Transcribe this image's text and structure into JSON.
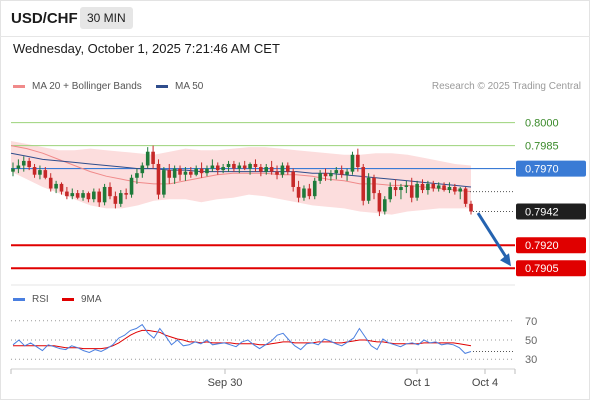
{
  "header": {
    "symbol": "USD/CHF",
    "timeframe": "30 MIN",
    "datetime": "Wednesday, October 1, 2025 7:21:46 AM CET"
  },
  "legend": {
    "ma20": "MA 20 + Bollinger Bands",
    "ma50": "MA 50",
    "credit": "Research © 2025 Trading Central",
    "rsi": "RSI",
    "rsi_ma": "9MA"
  },
  "colors": {
    "up": "#1e7a3a",
    "down": "#c62828",
    "ma20": "#f08a8a",
    "ma50": "#2f4d8c",
    "band_fill": "#fbd7d7",
    "support": "#e00000",
    "resistance": "#9bd27a",
    "pivot": "#3a7bd5",
    "arrow": "#2563b0",
    "rsi": "#4a7fe0",
    "rsi_ma": "#e00000"
  },
  "chart_data": [
    {
      "type": "candlestick",
      "ylim": [
        0.7896,
        0.8018
      ],
      "x_tick_labels": [
        "Sep 30",
        "Oct 1",
        "Oct 4"
      ],
      "levels": [
        {
          "label": "0.8000",
          "value": 0.8,
          "role": "resistance"
        },
        {
          "label": "0.7985",
          "value": 0.7985,
          "role": "resistance"
        },
        {
          "label": "0.7970",
          "value": 0.797,
          "role": "pivot"
        },
        {
          "label": "0.7920",
          "value": 0.792,
          "role": "support"
        },
        {
          "label": "0.7905",
          "value": 0.7905,
          "role": "support"
        }
      ],
      "last_price": {
        "label": "0.7942",
        "value": 0.7942
      },
      "candles": [
        [
          0.7968,
          0.7974,
          0.7965,
          0.797
        ],
        [
          0.797,
          0.7976,
          0.7967,
          0.7972
        ],
        [
          0.7972,
          0.7978,
          0.7968,
          0.7975
        ],
        [
          0.7975,
          0.7977,
          0.7969,
          0.7971
        ],
        [
          0.7971,
          0.7973,
          0.7964,
          0.7966
        ],
        [
          0.7966,
          0.7972,
          0.7963,
          0.7969
        ],
        [
          0.7969,
          0.7971,
          0.7963,
          0.7964
        ],
        [
          0.7964,
          0.7967,
          0.7955,
          0.7957
        ],
        [
          0.7957,
          0.7962,
          0.7954,
          0.796
        ],
        [
          0.796,
          0.7961,
          0.7953,
          0.7955
        ],
        [
          0.7955,
          0.7958,
          0.795,
          0.7952
        ],
        [
          0.7952,
          0.7957,
          0.795,
          0.7954
        ],
        [
          0.7954,
          0.7956,
          0.795,
          0.7951
        ],
        [
          0.7951,
          0.7956,
          0.7949,
          0.7954
        ],
        [
          0.7954,
          0.7955,
          0.7948,
          0.795
        ],
        [
          0.795,
          0.7957,
          0.7948,
          0.7955
        ],
        [
          0.7955,
          0.7957,
          0.7945,
          0.7948
        ],
        [
          0.7948,
          0.796,
          0.7946,
          0.7958
        ],
        [
          0.7958,
          0.7961,
          0.795,
          0.7952
        ],
        [
          0.7952,
          0.7955,
          0.7944,
          0.7947
        ],
        [
          0.7947,
          0.7956,
          0.7945,
          0.7954
        ],
        [
          0.7954,
          0.7957,
          0.795,
          0.7953
        ],
        [
          0.7953,
          0.7966,
          0.7951,
          0.7964
        ],
        [
          0.7964,
          0.797,
          0.796,
          0.7967
        ],
        [
          0.7967,
          0.7974,
          0.7964,
          0.7972
        ],
        [
          0.7972,
          0.7984,
          0.797,
          0.7981
        ],
        [
          0.7981,
          0.7985,
          0.797,
          0.7973
        ],
        [
          0.7973,
          0.7976,
          0.795,
          0.7953
        ],
        [
          0.7953,
          0.7971,
          0.7951,
          0.7969
        ],
        [
          0.7969,
          0.7973,
          0.796,
          0.7964
        ],
        [
          0.7964,
          0.7972,
          0.796,
          0.797
        ],
        [
          0.797,
          0.7972,
          0.7962,
          0.7966
        ],
        [
          0.7966,
          0.7971,
          0.7962,
          0.7968
        ],
        [
          0.7968,
          0.7971,
          0.7964,
          0.7966
        ],
        [
          0.7966,
          0.7972,
          0.7965,
          0.797
        ],
        [
          0.797,
          0.7974,
          0.7964,
          0.7967
        ],
        [
          0.7967,
          0.7972,
          0.7965,
          0.797
        ],
        [
          0.797,
          0.7976,
          0.7968,
          0.7972
        ],
        [
          0.7972,
          0.7974,
          0.7966,
          0.7969
        ],
        [
          0.7969,
          0.7973,
          0.7967,
          0.7971
        ],
        [
          0.7971,
          0.7975,
          0.7968,
          0.7973
        ],
        [
          0.7973,
          0.7975,
          0.7968,
          0.797
        ],
        [
          0.797,
          0.7974,
          0.7967,
          0.7972
        ],
        [
          0.7972,
          0.7975,
          0.7969,
          0.797
        ],
        [
          0.797,
          0.7974,
          0.7966,
          0.7973
        ],
        [
          0.7973,
          0.7976,
          0.7968,
          0.7971
        ],
        [
          0.7971,
          0.7973,
          0.7965,
          0.7968
        ],
        [
          0.7968,
          0.7973,
          0.7966,
          0.7971
        ],
        [
          0.7971,
          0.7975,
          0.7966,
          0.7968
        ],
        [
          0.7968,
          0.7972,
          0.7963,
          0.7966
        ],
        [
          0.7966,
          0.7974,
          0.7964,
          0.7972
        ],
        [
          0.7972,
          0.7974,
          0.7966,
          0.7968
        ],
        [
          0.7968,
          0.797,
          0.7955,
          0.7958
        ],
        [
          0.7958,
          0.7962,
          0.7948,
          0.7951
        ],
        [
          0.7951,
          0.7959,
          0.7949,
          0.7957
        ],
        [
          0.7957,
          0.796,
          0.795,
          0.7952
        ],
        [
          0.7952,
          0.7964,
          0.795,
          0.7962
        ],
        [
          0.7962,
          0.7969,
          0.796,
          0.7967
        ],
        [
          0.7967,
          0.797,
          0.7962,
          0.7965
        ],
        [
          0.7965,
          0.7969,
          0.7962,
          0.7967
        ],
        [
          0.7967,
          0.7971,
          0.7963,
          0.7969
        ],
        [
          0.7969,
          0.7972,
          0.7964,
          0.7966
        ],
        [
          0.7966,
          0.797,
          0.7962,
          0.7968
        ],
        [
          0.7968,
          0.7981,
          0.7966,
          0.7979
        ],
        [
          0.7979,
          0.7983,
          0.7968,
          0.7971
        ],
        [
          0.7971,
          0.7973,
          0.7946,
          0.7949
        ],
        [
          0.7949,
          0.7967,
          0.7947,
          0.7964
        ],
        [
          0.7964,
          0.7966,
          0.795,
          0.7954
        ],
        [
          0.7954,
          0.7956,
          0.7939,
          0.7942
        ],
        [
          0.7942,
          0.7952,
          0.794,
          0.795
        ],
        [
          0.795,
          0.7961,
          0.7948,
          0.7958
        ],
        [
          0.7958,
          0.7963,
          0.7952,
          0.7956
        ],
        [
          0.7956,
          0.796,
          0.795,
          0.7958
        ],
        [
          0.7958,
          0.7962,
          0.7954,
          0.7959
        ],
        [
          0.7959,
          0.7964,
          0.7948,
          0.7951
        ],
        [
          0.7951,
          0.7962,
          0.7949,
          0.796
        ],
        [
          0.796,
          0.7963,
          0.7954,
          0.7956
        ],
        [
          0.7956,
          0.7962,
          0.7953,
          0.796
        ],
        [
          0.796,
          0.7962,
          0.7955,
          0.7957
        ],
        [
          0.7957,
          0.7961,
          0.7955,
          0.7959
        ],
        [
          0.7959,
          0.7961,
          0.7955,
          0.7956
        ],
        [
          0.7956,
          0.7961,
          0.7954,
          0.7958
        ],
        [
          0.7958,
          0.796,
          0.7953,
          0.7955
        ],
        [
          0.7955,
          0.7958,
          0.795,
          0.7957
        ],
        [
          0.7957,
          0.7958,
          0.7945,
          0.7947
        ],
        [
          0.7947,
          0.7949,
          0.794,
          0.7942
        ]
      ],
      "ma20": [
        0.7985,
        0.7983,
        0.798,
        0.7976,
        0.7972,
        0.7968,
        0.7965,
        0.7963,
        0.7961,
        0.796,
        0.796,
        0.7962,
        0.7964,
        0.7966,
        0.7967,
        0.7967,
        0.7967,
        0.7966,
        0.7966,
        0.7965,
        0.7963,
        0.7962,
        0.796,
        0.796,
        0.7959,
        0.7959,
        0.7958,
        0.7957,
        0.7956,
        0.7955
      ],
      "ma50": [
        0.798,
        0.7978,
        0.7976,
        0.7975,
        0.7974,
        0.7973,
        0.7972,
        0.7971,
        0.797,
        0.797,
        0.7969,
        0.7969,
        0.7968,
        0.7968,
        0.7968,
        0.7968,
        0.7968,
        0.7968,
        0.7968,
        0.7967,
        0.7967,
        0.7966,
        0.7965,
        0.7964,
        0.7963,
        0.7962,
        0.7961,
        0.796,
        0.7959,
        0.7958
      ],
      "bollinger_upper": [
        0.7988,
        0.7986,
        0.7984,
        0.7982,
        0.7982,
        0.7983,
        0.7982,
        0.7981,
        0.798,
        0.7979,
        0.7981,
        0.7983,
        0.7982,
        0.7982,
        0.7983,
        0.7984,
        0.7984,
        0.7983,
        0.7982,
        0.7981,
        0.798,
        0.7979,
        0.7979,
        0.798,
        0.798,
        0.7979,
        0.7977,
        0.7975,
        0.7973,
        0.7972
      ],
      "bollinger_lower": [
        0.7968,
        0.7963,
        0.7958,
        0.7954,
        0.795,
        0.7946,
        0.7944,
        0.7944,
        0.7946,
        0.7949,
        0.795,
        0.795,
        0.7948,
        0.795,
        0.7951,
        0.7953,
        0.7952,
        0.795,
        0.7948,
        0.7946,
        0.7945,
        0.7944,
        0.7942,
        0.7941,
        0.794,
        0.7942,
        0.7943,
        0.7944,
        0.7944,
        0.7944
      ],
      "forecast": [
        [
          0.7941,
          0.7905
        ]
      ]
    },
    {
      "type": "line",
      "ylim": [
        25,
        75
      ],
      "y_tick_labels": [
        "70",
        "50",
        "30"
      ],
      "y_ticks": [
        70,
        50,
        30
      ],
      "series": [
        {
          "name": "RSI",
          "values": [
            45,
            50,
            44,
            47,
            43,
            39,
            45,
            43,
            41,
            40,
            44,
            42,
            39,
            37,
            40,
            38,
            41,
            45,
            52,
            55,
            60,
            62,
            66,
            57,
            52,
            62,
            54,
            45,
            50,
            44,
            45,
            48,
            46,
            50,
            45,
            46,
            47,
            45,
            43,
            48,
            50,
            45,
            41,
            45,
            49,
            55,
            57,
            50,
            44,
            40,
            46,
            47,
            45,
            51,
            49,
            46,
            44,
            48,
            52,
            62,
            53,
            44,
            40,
            51,
            47,
            45,
            43,
            46,
            47,
            45,
            50,
            47,
            48,
            45,
            46,
            45,
            42,
            36,
            38
          ]
        },
        {
          "name": "9MA",
          "values": [
            44,
            44,
            44,
            44,
            44,
            44,
            44,
            44,
            43,
            42,
            42,
            42,
            41,
            41,
            41,
            41,
            42,
            44,
            47,
            51,
            55,
            58,
            60,
            60,
            59,
            58,
            55,
            53,
            51,
            50,
            48,
            48,
            47,
            48,
            47,
            47,
            47,
            47,
            46,
            46,
            46,
            46,
            45,
            45,
            46,
            47,
            48,
            48,
            47,
            47,
            47,
            47,
            48,
            48,
            48,
            47,
            47,
            48,
            49,
            50,
            50,
            49,
            48,
            48,
            47,
            46,
            46,
            46,
            46,
            46,
            47,
            47,
            47,
            47,
            47,
            47,
            46,
            45,
            44
          ]
        }
      ]
    }
  ]
}
